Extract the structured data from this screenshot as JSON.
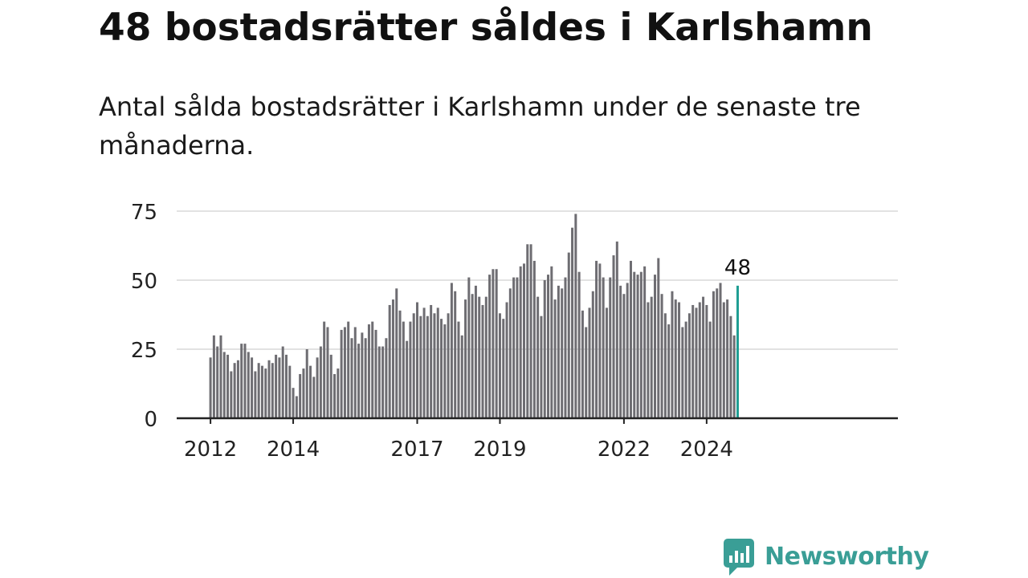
{
  "title": "48 bostadsrätter såldes i Karlshamn",
  "subtitle": "Antal sålda bostadsrätter i Karlshamn under de senaste tre månaderna.",
  "brand": {
    "name": "Newsworthy",
    "icon": "newsworthy-chart-bubble-icon",
    "color": "#3a9e96"
  },
  "chart_data": {
    "type": "bar",
    "title": "",
    "xlabel": "",
    "ylabel": "",
    "ylim": [
      0,
      75
    ],
    "yticks": [
      "0",
      "25",
      "50",
      "75"
    ],
    "xticks": [
      "2012",
      "2014",
      "2017",
      "2019",
      "2022",
      "2024"
    ],
    "grid": true,
    "bar_color": "#6e6d72",
    "highlight_color": "#1f9e93",
    "last_value_label": "48",
    "series": [
      {
        "values": [
          22,
          30,
          26,
          30,
          24,
          23,
          17,
          20,
          21,
          27,
          27,
          24,
          22,
          17,
          20,
          19,
          18,
          21,
          20,
          23,
          22,
          26,
          23,
          19,
          11,
          8,
          16,
          18,
          25,
          19,
          15,
          22,
          26,
          35,
          33,
          23,
          16,
          18,
          32,
          33,
          35,
          29,
          33,
          27,
          31,
          29,
          34,
          35,
          32,
          26,
          26,
          29,
          41,
          43,
          47,
          39,
          35,
          28,
          35,
          38,
          42,
          37,
          40,
          37,
          41,
          38,
          40,
          36,
          34,
          38,
          49,
          46,
          35,
          30,
          43,
          51,
          45,
          48,
          44,
          41,
          44,
          52,
          54,
          54,
          38,
          36,
          42,
          47,
          51,
          51,
          55,
          56,
          63,
          63,
          57,
          44,
          37,
          50,
          52,
          55,
          43,
          48,
          47,
          51,
          60,
          69,
          74,
          53,
          39,
          33,
          40,
          46,
          57,
          56,
          51,
          40,
          51,
          59,
          64,
          48,
          45,
          49,
          57,
          53,
          52,
          53,
          55,
          42,
          44,
          52,
          58,
          45,
          38,
          34,
          46,
          43,
          42,
          33,
          35,
          38,
          41,
          40,
          42,
          44,
          41,
          35,
          46,
          47,
          49,
          42,
          43,
          37,
          30,
          48
        ]
      }
    ]
  }
}
